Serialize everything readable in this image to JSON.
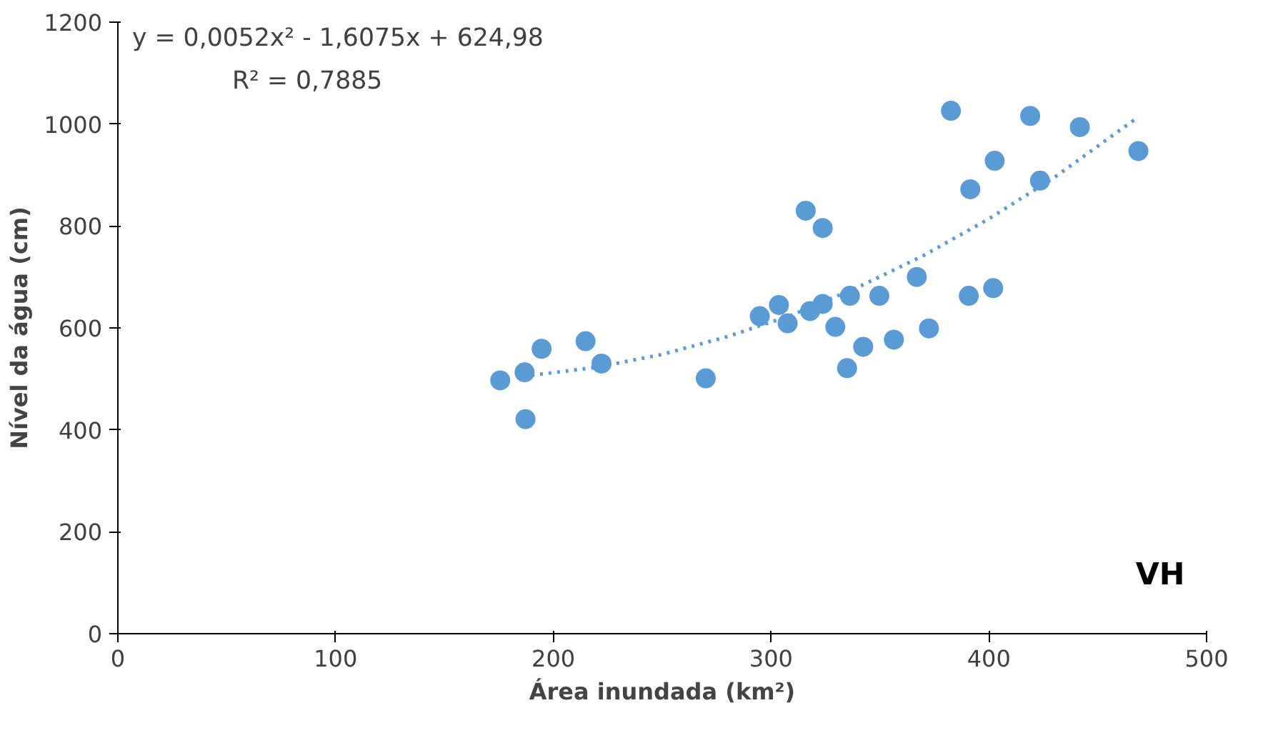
{
  "chart_data": {
    "type": "scatter",
    "xlabel": "Área inundada (km²)",
    "ylabel": "Nível da água (cm)",
    "annotations": [
      "y = 0,0052x² - 1,6075x + 624,98",
      "R² = 0,7885",
      "VH"
    ],
    "xlim": [
      0,
      500
    ],
    "ylim": [
      0,
      1200
    ],
    "xticks": [
      0,
      100,
      200,
      300,
      400,
      500
    ],
    "yticks": [
      0,
      200,
      400,
      600,
      800,
      1000,
      1200
    ],
    "grid": false,
    "marker": "circle",
    "series": [
      {
        "color": "#5b9bd5",
        "x": [
          175.6,
          186.8,
          187.2,
          194.6,
          214.8,
          222.1,
          270,
          294.8,
          303.6,
          307.6,
          315.9,
          317.9,
          323.7,
          323.7,
          329.5,
          334.9,
          336.2,
          342.3,
          349.7,
          356.4,
          366.9,
          372.5,
          382.6,
          390.8,
          391.5,
          402,
          402.7,
          419,
          423.5,
          441.8,
          468.7
        ],
        "values": [
          497,
          513,
          421,
          559,
          574,
          530,
          501,
          623,
          645,
          609,
          830,
          633,
          796,
          647,
          602,
          521,
          663,
          563,
          663,
          577,
          700,
          599,
          1026,
          663,
          872,
          678,
          928,
          1016,
          889,
          994,
          947
        ]
      },
      {
        "type": "line",
        "color": "#5b9bd5",
        "line_style": "dotted",
        "marker": "none",
        "x": [
          190,
          220,
          250,
          280,
          310,
          340,
          370,
          400,
          430,
          468
        ],
        "values": [
          507,
          523,
          548,
          583,
          626,
          680,
          742,
          814,
          895,
          1012
        ]
      }
    ]
  }
}
